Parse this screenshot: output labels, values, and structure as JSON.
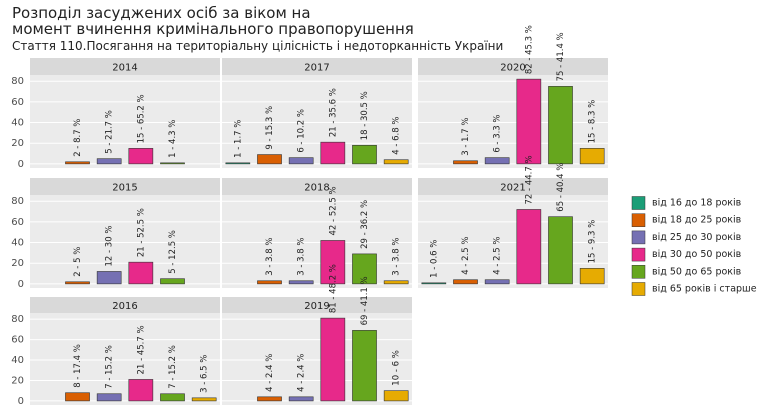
{
  "chart_data": {
    "type": "bar",
    "title": [
      "Розподіл засуджених осіб за віком на",
      "момент вчинення кримінального правопорушення"
    ],
    "subtitle": "Стаття 110.Посягання на територіальну цілісність і недоторканність України",
    "categories": [
      "від 16 до 18 років",
      "від 18 до 25 років",
      "від 25 до 30 років",
      "від 30 до 50 років",
      "від 50 до 65 років",
      "від 65 років і старше"
    ],
    "colors": [
      "#1b9e77",
      "#d95f02",
      "#7570b3",
      "#e7298a",
      "#66a61e",
      "#e6ab02"
    ],
    "ylim": [
      -4,
      86
    ],
    "yticks": [
      0,
      20,
      40,
      60,
      80
    ],
    "grid": true,
    "panels": [
      {
        "title": "2014",
        "values": [
          null,
          2,
          5,
          15,
          1,
          null
        ],
        "value_labels": [
          null,
          "2 - 8.7 %",
          "5 - 21.7 %",
          "15 - 65.2 %",
          "1 - 4.3 %",
          null
        ]
      },
      {
        "title": "2017",
        "values": [
          1,
          9,
          6,
          21,
          18,
          4
        ],
        "value_labels": [
          "1 - 1.7 %",
          "9 - 15.3 %",
          "6 - 10.2 %",
          "21 - 35.6 %",
          "18 - 30.5 %",
          "4 - 6.8 %"
        ]
      },
      {
        "title": "2020",
        "values": [
          null,
          3,
          6,
          82,
          75,
          15
        ],
        "value_labels": [
          null,
          "3 - 1.7 %",
          "6 - 3.3 %",
          "82 - 45.3 %",
          "75 - 41.4 %",
          "15 - 8.3 %"
        ]
      },
      {
        "title": "2015",
        "values": [
          null,
          2,
          12,
          21,
          5,
          null
        ],
        "value_labels": [
          null,
          "2 - 5 %",
          "12 - 30 %",
          "21 - 52.5 %",
          "5 - 12.5 %",
          null
        ]
      },
      {
        "title": "2018",
        "values": [
          null,
          3,
          3,
          42,
          29,
          3
        ],
        "value_labels": [
          null,
          "3 - 3.8 %",
          "3 - 3.8 %",
          "42 - 52.5 %",
          "29 - 36.2 %",
          "3 - 3.8 %"
        ]
      },
      {
        "title": "2021",
        "values": [
          1,
          4,
          4,
          72,
          65,
          15
        ],
        "value_labels": [
          "1 - 0.6 %",
          "4 - 2.5 %",
          "4 - 2.5 %",
          "72 - 44.7 %",
          "65 - 40.4 %",
          "15 - 9.3 %"
        ]
      },
      {
        "title": "2016",
        "values": [
          null,
          8,
          7,
          21,
          7,
          3
        ],
        "value_labels": [
          null,
          "8 - 17.4 %",
          "7 - 15.2 %",
          "21 - 45.7 %",
          "7 - 15.2 %",
          "3 - 6.5 %"
        ]
      },
      {
        "title": "2019",
        "values": [
          null,
          4,
          4,
          81,
          69,
          10
        ],
        "value_labels": [
          null,
          "4 - 2.4 %",
          "4 - 2.4 %",
          "81 - 48.2 %",
          "69 - 41.1 %",
          "10 - 6 %"
        ]
      }
    ]
  }
}
